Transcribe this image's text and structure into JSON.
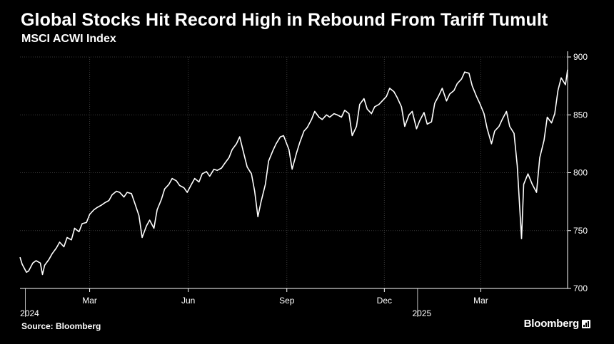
{
  "header": {
    "title": "Global Stocks Hit Record High in Rebound From Tariff Tumult",
    "subtitle": "MSCI ACWI Index"
  },
  "footer": {
    "source": "Source: Bloomberg",
    "brand": "Bloomberg"
  },
  "icons": {
    "brand": "bloomberg-logo-icon"
  },
  "colors": {
    "background": "#000000",
    "line": "#ffffff",
    "grid": "#3a3a3a"
  },
  "chart_data": {
    "type": "line",
    "title": "Global Stocks Hit Record High in Rebound From Tariff Tumult",
    "subtitle": "MSCI ACWI Index",
    "xlabel": "",
    "ylabel": "",
    "ylim": [
      700,
      900
    ],
    "yticks": [
      700,
      750,
      800,
      850,
      900
    ],
    "xlim": [
      "2023-12-27",
      "2025-05-21"
    ],
    "x_month_ticks": [
      {
        "date": "2024-03-01",
        "label": "Mar"
      },
      {
        "date": "2024-06-01",
        "label": "Jun"
      },
      {
        "date": "2024-09-01",
        "label": "Sep"
      },
      {
        "date": "2024-12-01",
        "label": "Dec"
      },
      {
        "date": "2025-03-01",
        "label": "Mar"
      }
    ],
    "x_year_ticks": [
      {
        "date": "2024-01-01",
        "label": "2024"
      },
      {
        "date": "2025-01-01",
        "label": "2025"
      }
    ],
    "grid": true,
    "legend": "none",
    "series": [
      {
        "values": [
          [
            "2023-12-27",
            727
          ],
          [
            "2023-12-29",
            721
          ],
          [
            "2024-01-02",
            714
          ],
          [
            "2024-01-04",
            715
          ],
          [
            "2024-01-08",
            722
          ],
          [
            "2024-01-11",
            724
          ],
          [
            "2024-01-15",
            722
          ],
          [
            "2024-01-17",
            712
          ],
          [
            "2024-01-19",
            720
          ],
          [
            "2024-01-23",
            725
          ],
          [
            "2024-01-26",
            730
          ],
          [
            "2024-01-30",
            735
          ],
          [
            "2024-02-02",
            740
          ],
          [
            "2024-02-06",
            736
          ],
          [
            "2024-02-09",
            744
          ],
          [
            "2024-02-13",
            742
          ],
          [
            "2024-02-16",
            752
          ],
          [
            "2024-02-20",
            749
          ],
          [
            "2024-02-23",
            756
          ],
          [
            "2024-02-27",
            757
          ],
          [
            "2024-03-01",
            764
          ],
          [
            "2024-03-05",
            768
          ],
          [
            "2024-03-08",
            770
          ],
          [
            "2024-03-12",
            772
          ],
          [
            "2024-03-15",
            774
          ],
          [
            "2024-03-19",
            776
          ],
          [
            "2024-03-22",
            781
          ],
          [
            "2024-03-26",
            784
          ],
          [
            "2024-03-29",
            783
          ],
          [
            "2024-04-02",
            779
          ],
          [
            "2024-04-05",
            783
          ],
          [
            "2024-04-09",
            782
          ],
          [
            "2024-04-12",
            774
          ],
          [
            "2024-04-16",
            763
          ],
          [
            "2024-04-19",
            744
          ],
          [
            "2024-04-23",
            754
          ],
          [
            "2024-04-26",
            759
          ],
          [
            "2024-04-30",
            752
          ],
          [
            "2024-05-03",
            768
          ],
          [
            "2024-05-07",
            777
          ],
          [
            "2024-05-10",
            786
          ],
          [
            "2024-05-14",
            790
          ],
          [
            "2024-05-17",
            795
          ],
          [
            "2024-05-21",
            793
          ],
          [
            "2024-05-24",
            789
          ],
          [
            "2024-05-28",
            787
          ],
          [
            "2024-05-31",
            783
          ],
          [
            "2024-06-04",
            790
          ],
          [
            "2024-06-07",
            795
          ],
          [
            "2024-06-11",
            792
          ],
          [
            "2024-06-14",
            799
          ],
          [
            "2024-06-18",
            801
          ],
          [
            "2024-06-21",
            797
          ],
          [
            "2024-06-25",
            803
          ],
          [
            "2024-06-28",
            802
          ],
          [
            "2024-07-02",
            804
          ],
          [
            "2024-07-05",
            808
          ],
          [
            "2024-07-09",
            813
          ],
          [
            "2024-07-12",
            820
          ],
          [
            "2024-07-16",
            825
          ],
          [
            "2024-07-19",
            831
          ],
          [
            "2024-07-23",
            816
          ],
          [
            "2024-07-26",
            805
          ],
          [
            "2024-07-30",
            799
          ],
          [
            "2024-08-02",
            784
          ],
          [
            "2024-08-05",
            762
          ],
          [
            "2024-08-08",
            775
          ],
          [
            "2024-08-12",
            790
          ],
          [
            "2024-08-15",
            810
          ],
          [
            "2024-08-19",
            819
          ],
          [
            "2024-08-22",
            825
          ],
          [
            "2024-08-26",
            831
          ],
          [
            "2024-08-29",
            832
          ],
          [
            "2024-09-03",
            820
          ],
          [
            "2024-09-06",
            803
          ],
          [
            "2024-09-10",
            817
          ],
          [
            "2024-09-13",
            826
          ],
          [
            "2024-09-17",
            836
          ],
          [
            "2024-09-20",
            839
          ],
          [
            "2024-09-24",
            846
          ],
          [
            "2024-09-27",
            853
          ],
          [
            "2024-10-01",
            848
          ],
          [
            "2024-10-04",
            846
          ],
          [
            "2024-10-08",
            850
          ],
          [
            "2024-10-11",
            848
          ],
          [
            "2024-10-15",
            851
          ],
          [
            "2024-10-18",
            850
          ],
          [
            "2024-10-22",
            848
          ],
          [
            "2024-10-25",
            854
          ],
          [
            "2024-10-29",
            851
          ],
          [
            "2024-11-01",
            832
          ],
          [
            "2024-11-05",
            840
          ],
          [
            "2024-11-08",
            859
          ],
          [
            "2024-11-12",
            864
          ],
          [
            "2024-11-15",
            855
          ],
          [
            "2024-11-19",
            851
          ],
          [
            "2024-11-22",
            857
          ],
          [
            "2024-11-26",
            859
          ],
          [
            "2024-11-29",
            862
          ],
          [
            "2024-12-03",
            866
          ],
          [
            "2024-12-06",
            873
          ],
          [
            "2024-12-10",
            870
          ],
          [
            "2024-12-13",
            865
          ],
          [
            "2024-12-17",
            857
          ],
          [
            "2024-12-20",
            840
          ],
          [
            "2024-12-24",
            850
          ],
          [
            "2024-12-27",
            853
          ],
          [
            "2024-12-31",
            838
          ],
          [
            "2025-01-03",
            845
          ],
          [
            "2025-01-07",
            852
          ],
          [
            "2025-01-10",
            842
          ],
          [
            "2025-01-14",
            844
          ],
          [
            "2025-01-17",
            860
          ],
          [
            "2025-01-21",
            867
          ],
          [
            "2025-01-24",
            873
          ],
          [
            "2025-01-28",
            862
          ],
          [
            "2025-01-31",
            868
          ],
          [
            "2025-02-04",
            871
          ],
          [
            "2025-02-07",
            877
          ],
          [
            "2025-02-11",
            881
          ],
          [
            "2025-02-14",
            887
          ],
          [
            "2025-02-18",
            886
          ],
          [
            "2025-02-21",
            875
          ],
          [
            "2025-02-25",
            866
          ],
          [
            "2025-02-28",
            860
          ],
          [
            "2025-03-04",
            851
          ],
          [
            "2025-03-07",
            838
          ],
          [
            "2025-03-11",
            825
          ],
          [
            "2025-03-14",
            836
          ],
          [
            "2025-03-18",
            840
          ],
          [
            "2025-03-21",
            846
          ],
          [
            "2025-03-25",
            853
          ],
          [
            "2025-03-28",
            840
          ],
          [
            "2025-04-01",
            834
          ],
          [
            "2025-04-04",
            806
          ],
          [
            "2025-04-08",
            743
          ],
          [
            "2025-04-10",
            790
          ],
          [
            "2025-04-14",
            799
          ],
          [
            "2025-04-18",
            790
          ],
          [
            "2025-04-22",
            783
          ],
          [
            "2025-04-25",
            813
          ],
          [
            "2025-04-29",
            828
          ],
          [
            "2025-05-02",
            848
          ],
          [
            "2025-05-06",
            843
          ],
          [
            "2025-05-09",
            851
          ],
          [
            "2025-05-12",
            871
          ],
          [
            "2025-05-15",
            882
          ],
          [
            "2025-05-19",
            876
          ],
          [
            "2025-05-21",
            889
          ]
        ]
      }
    ]
  }
}
